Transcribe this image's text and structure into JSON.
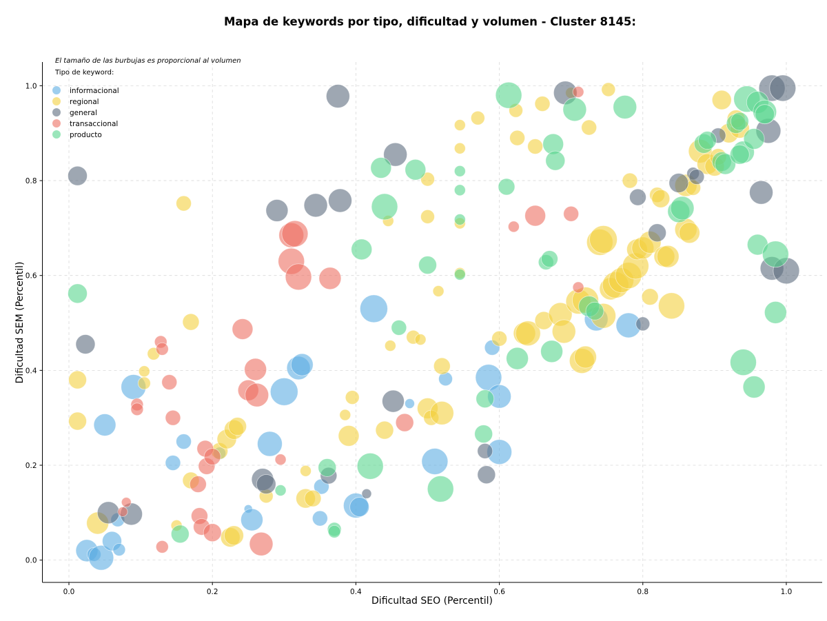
{
  "chart_data": {
    "type": "scatter",
    "title": "Mapa de keywords por tipo, dificultad y volumen - Cluster 8145:",
    "xlabel": "Dificultad SEO (Percentil)",
    "ylabel": "Dificultad SEM (Percentil)",
    "xlim": [
      -0.037,
      1.05
    ],
    "ylim": [
      -0.047,
      1.05
    ],
    "xticks": [
      "0.0",
      "0.2",
      "0.4",
      "0.6",
      "0.8",
      "1.0"
    ],
    "yticks": [
      "0.0",
      "0.2",
      "0.4",
      "0.6",
      "0.8",
      "1.0"
    ],
    "grid": true,
    "note": "El tamaño de las burbujas es proporcional al volumen",
    "legend_title": "Tipo de keyword:",
    "legend_position": "top-left",
    "colors": {
      "informacional": "#5DADE2",
      "regional": "#F4D03F",
      "general": "#5D6D7E",
      "transaccional": "#EC7063",
      "producto": "#58D68D"
    },
    "series": [
      {
        "name": "informacional",
        "points": [
          [
            0.025,
            0.02,
            16
          ],
          [
            0.035,
            0.012,
            10
          ],
          [
            0.045,
            0.005,
            18
          ],
          [
            0.06,
            0.04,
            14
          ],
          [
            0.07,
            0.022,
            9
          ],
          [
            0.068,
            0.085,
            10
          ],
          [
            0.05,
            0.285,
            16
          ],
          [
            0.09,
            0.365,
            18
          ],
          [
            0.145,
            0.205,
            11
          ],
          [
            0.16,
            0.25,
            11
          ],
          [
            0.21,
            0.225,
            9
          ],
          [
            0.25,
            0.108,
            6
          ],
          [
            0.255,
            0.085,
            16
          ],
          [
            0.28,
            0.245,
            18
          ],
          [
            0.3,
            0.355,
            20
          ],
          [
            0.32,
            0.405,
            17
          ],
          [
            0.325,
            0.412,
            16
          ],
          [
            0.35,
            0.088,
            11
          ],
          [
            0.352,
            0.155,
            11
          ],
          [
            0.4,
            0.115,
            18
          ],
          [
            0.405,
            0.112,
            14
          ],
          [
            0.425,
            0.53,
            20
          ],
          [
            0.475,
            0.33,
            7
          ],
          [
            0.51,
            0.208,
            19
          ],
          [
            0.525,
            0.382,
            10
          ],
          [
            0.585,
            0.385,
            19
          ],
          [
            0.6,
            0.345,
            17
          ],
          [
            0.59,
            0.448,
            11
          ],
          [
            0.6,
            0.228,
            18
          ],
          [
            0.735,
            0.508,
            17
          ],
          [
            0.78,
            0.495,
            18
          ]
        ]
      },
      {
        "name": "regional",
        "points": [
          [
            0.012,
            0.38,
            13
          ],
          [
            0.012,
            0.293,
            13
          ],
          [
            0.04,
            0.078,
            16
          ],
          [
            0.105,
            0.373,
            9
          ],
          [
            0.105,
            0.398,
            8
          ],
          [
            0.118,
            0.435,
            9
          ],
          [
            0.16,
            0.752,
            11
          ],
          [
            0.17,
            0.502,
            12
          ],
          [
            0.17,
            0.168,
            12
          ],
          [
            0.15,
            0.073,
            8
          ],
          [
            0.21,
            0.23,
            12
          ],
          [
            0.22,
            0.255,
            14
          ],
          [
            0.23,
            0.275,
            14
          ],
          [
            0.235,
            0.282,
            13
          ],
          [
            0.225,
            0.048,
            14
          ],
          [
            0.23,
            0.052,
            14
          ],
          [
            0.275,
            0.135,
            10
          ],
          [
            0.33,
            0.188,
            8
          ],
          [
            0.33,
            0.13,
            14
          ],
          [
            0.34,
            0.13,
            12
          ],
          [
            0.385,
            0.306,
            8
          ],
          [
            0.39,
            0.262,
            15
          ],
          [
            0.395,
            0.343,
            10
          ],
          [
            0.445,
            0.715,
            8
          ],
          [
            0.44,
            0.274,
            13
          ],
          [
            0.448,
            0.452,
            8
          ],
          [
            0.48,
            0.47,
            10
          ],
          [
            0.49,
            0.465,
            8
          ],
          [
            0.5,
            0.32,
            15
          ],
          [
            0.505,
            0.3,
            11
          ],
          [
            0.52,
            0.31,
            17
          ],
          [
            0.5,
            0.724,
            10
          ],
          [
            0.5,
            0.803,
            10
          ],
          [
            0.515,
            0.567,
            8
          ],
          [
            0.52,
            0.409,
            12
          ],
          [
            0.545,
            0.917,
            8
          ],
          [
            0.545,
            0.868,
            8
          ],
          [
            0.545,
            0.71,
            8
          ],
          [
            0.545,
            0.605,
            8
          ],
          [
            0.57,
            0.932,
            10
          ],
          [
            0.6,
            0.467,
            11
          ],
          [
            0.623,
            0.948,
            10
          ],
          [
            0.625,
            0.89,
            11
          ],
          [
            0.635,
            0.478,
            16
          ],
          [
            0.64,
            0.478,
            18
          ],
          [
            0.65,
            0.872,
            11
          ],
          [
            0.66,
            0.962,
            11
          ],
          [
            0.662,
            0.505,
            13
          ],
          [
            0.685,
            0.518,
            17
          ],
          [
            0.69,
            0.482,
            17
          ],
          [
            0.7,
            0.985,
            8
          ],
          [
            0.715,
            0.42,
            18
          ],
          [
            0.72,
            0.428,
            16
          ],
          [
            0.71,
            0.545,
            18
          ],
          [
            0.72,
            0.548,
            19
          ],
          [
            0.725,
            0.912,
            11
          ],
          [
            0.752,
            0.992,
            10
          ],
          [
            0.74,
            0.67,
            19
          ],
          [
            0.745,
            0.676,
            20
          ],
          [
            0.745,
            0.515,
            18
          ],
          [
            0.755,
            0.572,
            16
          ],
          [
            0.762,
            0.58,
            19
          ],
          [
            0.77,
            0.59,
            18
          ],
          [
            0.78,
            0.6,
            19
          ],
          [
            0.782,
            0.8,
            11
          ],
          [
            0.79,
            0.62,
            19
          ],
          [
            0.792,
            0.655,
            15
          ],
          [
            0.8,
            0.658,
            16
          ],
          [
            0.81,
            0.67,
            16
          ],
          [
            0.81,
            0.555,
            12
          ],
          [
            0.82,
            0.77,
            11
          ],
          [
            0.825,
            0.762,
            13
          ],
          [
            0.83,
            0.64,
            15
          ],
          [
            0.835,
            0.64,
            16
          ],
          [
            0.84,
            0.536,
            19
          ],
          [
            0.86,
            0.697,
            16
          ],
          [
            0.86,
            0.79,
            16
          ],
          [
            0.865,
            0.69,
            15
          ],
          [
            0.87,
            0.785,
            11
          ],
          [
            0.88,
            0.862,
            17
          ],
          [
            0.89,
            0.835,
            15
          ],
          [
            0.9,
            0.83,
            14
          ],
          [
            0.905,
            0.85,
            12
          ],
          [
            0.91,
            0.97,
            14
          ],
          [
            0.92,
            0.9,
            14
          ],
          [
            0.935,
            0.91,
            14
          ],
          [
            0.93,
            0.93,
            13
          ]
        ]
      },
      {
        "name": "general",
        "points": [
          [
            0.012,
            0.81,
            14
          ],
          [
            0.023,
            0.455,
            14
          ],
          [
            0.055,
            0.1,
            16
          ],
          [
            0.087,
            0.097,
            16
          ],
          [
            0.27,
            0.17,
            16
          ],
          [
            0.275,
            0.16,
            14
          ],
          [
            0.29,
            0.737,
            16
          ],
          [
            0.344,
            0.748,
            17
          ],
          [
            0.362,
            0.178,
            12
          ],
          [
            0.375,
            0.978,
            17
          ],
          [
            0.378,
            0.758,
            17
          ],
          [
            0.415,
            0.14,
            7
          ],
          [
            0.455,
            0.855,
            17
          ],
          [
            0.452,
            0.335,
            16
          ],
          [
            0.58,
            0.23,
            11
          ],
          [
            0.582,
            0.18,
            13
          ],
          [
            0.692,
            0.985,
            17
          ],
          [
            0.793,
            0.765,
            12
          ],
          [
            0.8,
            0.498,
            10
          ],
          [
            0.82,
            0.69,
            13
          ],
          [
            0.85,
            0.795,
            14
          ],
          [
            0.87,
            0.815,
            9
          ],
          [
            0.875,
            0.808,
            11
          ],
          [
            0.905,
            0.895,
            11
          ],
          [
            0.965,
            0.775,
            17
          ],
          [
            0.975,
            0.905,
            18
          ],
          [
            0.98,
            0.995,
            19
          ],
          [
            0.98,
            0.615,
            17
          ],
          [
            0.995,
            0.995,
            19
          ],
          [
            1.0,
            0.61,
            19
          ]
        ]
      },
      {
        "name": "transaccional",
        "points": [
          [
            0.075,
            0.102,
            7
          ],
          [
            0.08,
            0.122,
            7
          ],
          [
            0.095,
            0.328,
            9
          ],
          [
            0.095,
            0.318,
            9
          ],
          [
            0.128,
            0.46,
            9
          ],
          [
            0.13,
            0.445,
            9
          ],
          [
            0.13,
            0.028,
            9
          ],
          [
            0.14,
            0.375,
            11
          ],
          [
            0.145,
            0.3,
            11
          ],
          [
            0.18,
            0.16,
            12
          ],
          [
            0.182,
            0.093,
            12
          ],
          [
            0.185,
            0.07,
            12
          ],
          [
            0.19,
            0.235,
            12
          ],
          [
            0.192,
            0.198,
            12
          ],
          [
            0.2,
            0.218,
            12
          ],
          [
            0.2,
            0.058,
            13
          ],
          [
            0.242,
            0.487,
            15
          ],
          [
            0.25,
            0.358,
            15
          ],
          [
            0.26,
            0.402,
            16
          ],
          [
            0.262,
            0.348,
            17
          ],
          [
            0.268,
            0.034,
            17
          ],
          [
            0.295,
            0.212,
            8
          ],
          [
            0.31,
            0.63,
            19
          ],
          [
            0.31,
            0.685,
            18
          ],
          [
            0.315,
            0.688,
            19
          ],
          [
            0.32,
            0.597,
            19
          ],
          [
            0.364,
            0.594,
            16
          ],
          [
            0.468,
            0.29,
            13
          ],
          [
            0.62,
            0.703,
            8
          ],
          [
            0.65,
            0.726,
            15
          ],
          [
            0.7,
            0.73,
            11
          ],
          [
            0.71,
            0.987,
            8
          ],
          [
            0.71,
            0.575,
            8
          ]
        ]
      },
      {
        "name": "producto",
        "points": [
          [
            0.012,
            0.562,
            14
          ],
          [
            0.155,
            0.055,
            13
          ],
          [
            0.295,
            0.147,
            8
          ],
          [
            0.36,
            0.195,
            13
          ],
          [
            0.37,
            0.065,
            10
          ],
          [
            0.37,
            0.06,
            9
          ],
          [
            0.408,
            0.655,
            15
          ],
          [
            0.42,
            0.198,
            19
          ],
          [
            0.435,
            0.827,
            15
          ],
          [
            0.44,
            0.745,
            19
          ],
          [
            0.46,
            0.49,
            11
          ],
          [
            0.483,
            0.823,
            15
          ],
          [
            0.5,
            0.622,
            13
          ],
          [
            0.518,
            0.15,
            19
          ],
          [
            0.545,
            0.82,
            8
          ],
          [
            0.545,
            0.78,
            8
          ],
          [
            0.545,
            0.718,
            8
          ],
          [
            0.545,
            0.602,
            8
          ],
          [
            0.578,
            0.266,
            13
          ],
          [
            0.58,
            0.34,
            13
          ],
          [
            0.61,
            0.787,
            12
          ],
          [
            0.613,
            0.98,
            19
          ],
          [
            0.625,
            0.425,
            16
          ],
          [
            0.665,
            0.628,
            11
          ],
          [
            0.67,
            0.635,
            12
          ],
          [
            0.673,
            0.44,
            16
          ],
          [
            0.675,
            0.877,
            15
          ],
          [
            0.678,
            0.842,
            14
          ],
          [
            0.705,
            0.95,
            17
          ],
          [
            0.725,
            0.535,
            15
          ],
          [
            0.733,
            0.525,
            13
          ],
          [
            0.775,
            0.955,
            17
          ],
          [
            0.85,
            0.735,
            16
          ],
          [
            0.855,
            0.742,
            17
          ],
          [
            0.885,
            0.878,
            14
          ],
          [
            0.89,
            0.885,
            13
          ],
          [
            0.91,
            0.84,
            14
          ],
          [
            0.915,
            0.835,
            15
          ],
          [
            0.93,
            0.92,
            14
          ],
          [
            0.935,
            0.925,
            13
          ],
          [
            0.94,
            0.86,
            16
          ],
          [
            0.935,
            0.855,
            14
          ],
          [
            0.94,
            0.417,
            19
          ],
          [
            0.945,
            0.972,
            19
          ],
          [
            0.955,
            0.888,
            15
          ],
          [
            0.955,
            0.365,
            16
          ],
          [
            0.96,
            0.665,
            15
          ],
          [
            0.96,
            0.965,
            16
          ],
          [
            0.97,
            0.945,
            17
          ],
          [
            0.97,
            0.94,
            14
          ],
          [
            0.985,
            0.522,
            16
          ],
          [
            0.985,
            0.645,
            19
          ]
        ]
      }
    ]
  }
}
